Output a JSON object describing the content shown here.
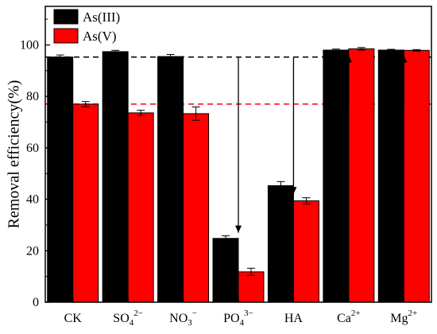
{
  "chart_data": {
    "type": "bar",
    "title": "",
    "xlabel": "",
    "ylabel": "Removal efficiency(%)",
    "ylim": [
      0,
      115
    ],
    "yticks": [
      0,
      20,
      40,
      60,
      80,
      100
    ],
    "grid": false,
    "legend_position": "top-left",
    "categories": [
      {
        "base": "CK",
        "sub": "",
        "sup": ""
      },
      {
        "base": "SO",
        "sub": "4",
        "sup": "2−"
      },
      {
        "base": "NO",
        "sub": "3",
        "sup": "−"
      },
      {
        "base": "PO",
        "sub": "4",
        "sup": "3−"
      },
      {
        "base": "HA",
        "sub": "",
        "sup": ""
      },
      {
        "base": "Ca",
        "sub": "",
        "sup": "2+"
      },
      {
        "base": "Mg",
        "sub": "",
        "sup": "2+"
      }
    ],
    "series": [
      {
        "name": "As(III)",
        "color": "#000000",
        "values": [
          95.3,
          97.4,
          95.5,
          24.8,
          45.3,
          98.0,
          98.0
        ],
        "errors": [
          0.8,
          0.5,
          0.8,
          1.0,
          1.6,
          0.4,
          0.3
        ]
      },
      {
        "name": "As(V)",
        "color": "#ff0000",
        "values": [
          77.0,
          73.6,
          73.3,
          11.8,
          39.4,
          98.5,
          97.9
        ],
        "errors": [
          1.0,
          1.0,
          2.6,
          1.4,
          1.2,
          0.5,
          0.3
        ]
      }
    ],
    "reference_lines": [
      {
        "y": 95.3,
        "color": "#000000",
        "style": "dashed"
      },
      {
        "y": 77.0,
        "color": "#ff0000",
        "style": "dashed"
      }
    ],
    "annotations": [
      {
        "type": "arrow",
        "x_category": 3,
        "y_from": 95.3,
        "y_to": 27
      },
      {
        "type": "arrow",
        "x_category": 4,
        "y_from": 95.3,
        "y_to": 42
      },
      {
        "type": "arrow",
        "x_category": 5,
        "y_from": 77,
        "y_to": 96
      },
      {
        "type": "arrow",
        "x_category": 6,
        "y_from": 77,
        "y_to": 96
      }
    ]
  }
}
